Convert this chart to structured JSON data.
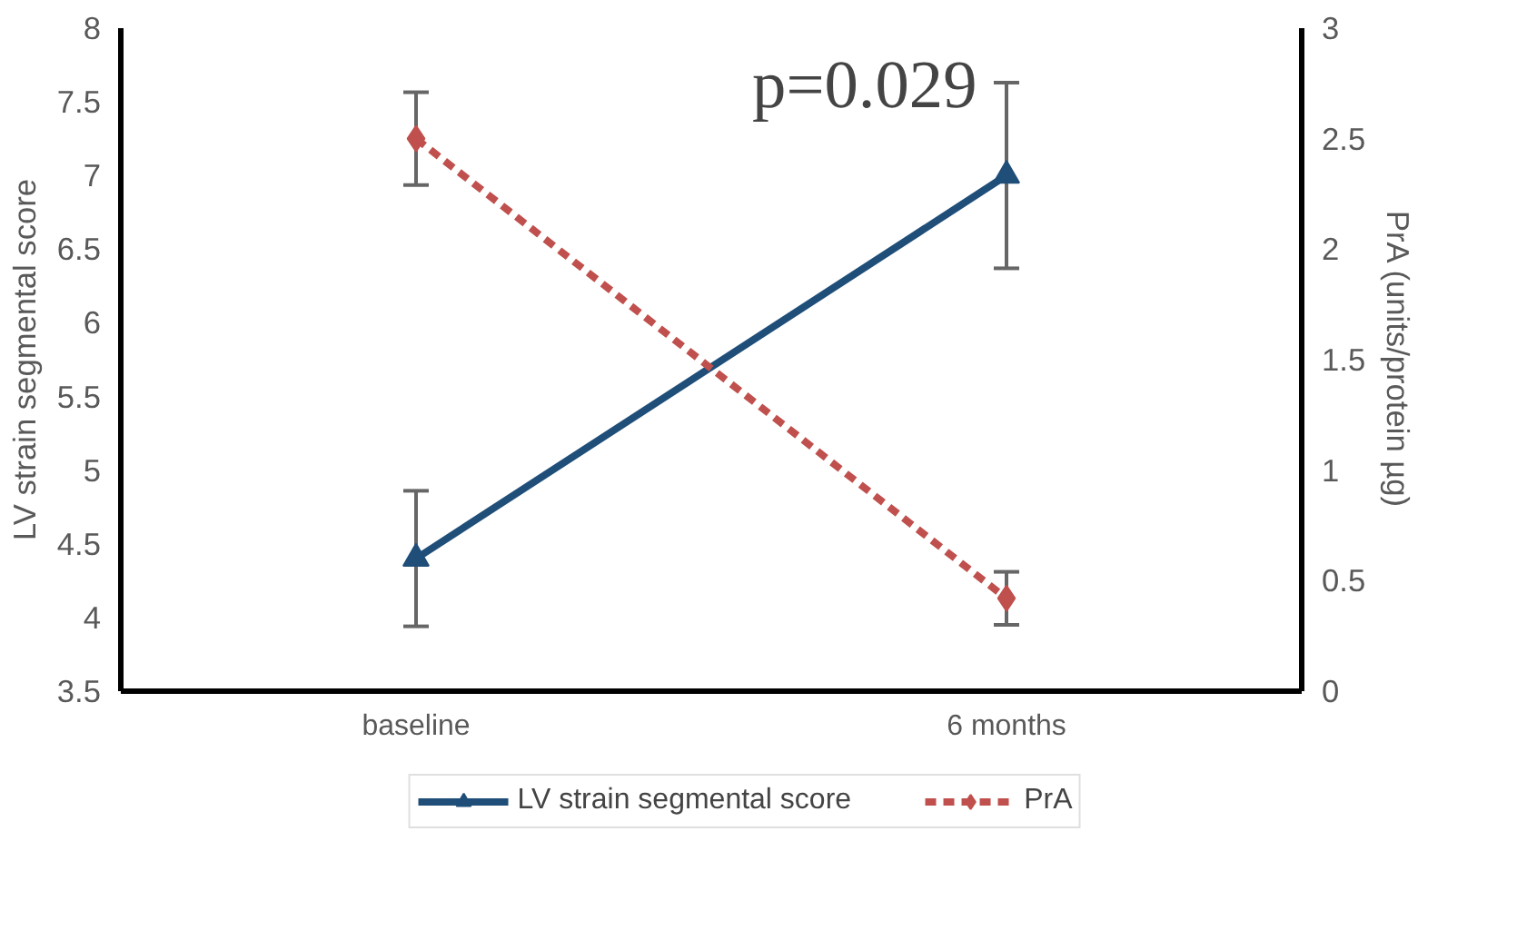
{
  "chart_data": {
    "type": "line",
    "categories": [
      "baseline",
      "6 months"
    ],
    "ylabel": "LV strain segmental score",
    "y2label": "PrA (units/protein µg)",
    "ylim": [
      3.5,
      8
    ],
    "yticks": [
      3.5,
      4,
      4.5,
      5,
      5.5,
      6,
      6.5,
      7,
      7.5,
      8
    ],
    "y2lim": [
      0,
      3
    ],
    "y2ticks": [
      0,
      0.5,
      1,
      1.5,
      2,
      2.5,
      3
    ],
    "series": [
      {
        "name": "LV strain segmental score",
        "color": "#1f4e79",
        "values": [
          4.4,
          7.0
        ],
        "errors": [
          0.46,
          0.63
        ],
        "marker": "triangle",
        "line_style": "solid"
      },
      {
        "name": "PrA",
        "color": "#c0504d",
        "values": [
          2.5,
          0.42
        ],
        "errors": [
          0.21,
          0.12
        ],
        "marker": "diamond",
        "line_style": "dashed",
        "axis": "y2"
      }
    ],
    "annotations": [
      "p=0.029"
    ],
    "grid": false,
    "legend": "bottom"
  }
}
